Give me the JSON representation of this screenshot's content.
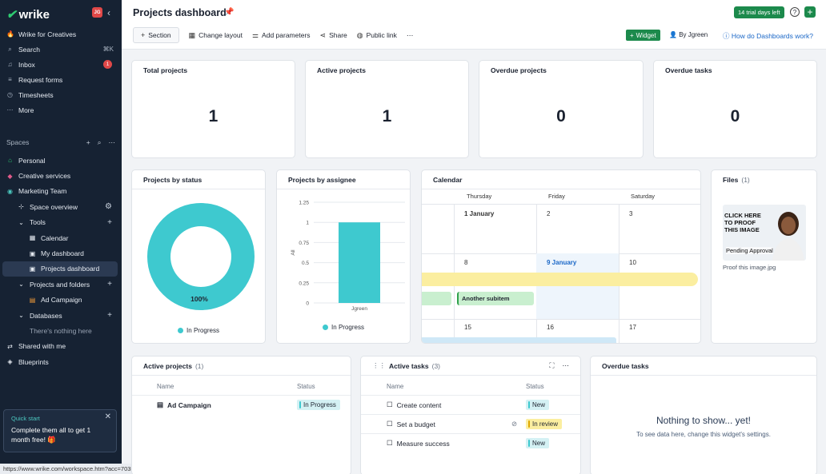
{
  "app": {
    "logo_text": "wrike",
    "avatar_initials": "JG"
  },
  "sidebar": {
    "top_items": [
      {
        "label": "Wrike for Creatives",
        "icon": "fire-icon"
      },
      {
        "label": "Search",
        "icon": "search-icon",
        "shortcut": "⌘K"
      },
      {
        "label": "Inbox",
        "icon": "bell-icon",
        "badge": "1"
      },
      {
        "label": "Request forms",
        "icon": "form-icon"
      },
      {
        "label": "Timesheets",
        "icon": "clock-icon"
      },
      {
        "label": "More",
        "icon": "more-icon"
      }
    ],
    "spaces_label": "Spaces",
    "tree": [
      {
        "label": "Personal",
        "icon": "home-icon"
      },
      {
        "label": "Creative services",
        "icon": "palette-icon"
      },
      {
        "label": "Marketing Team",
        "icon": "team-icon"
      },
      {
        "label": "Space overview",
        "icon": "overview-icon"
      },
      {
        "label": "Tools",
        "icon": "chevron-down-icon"
      },
      {
        "label": "Calendar",
        "icon": "calendar-icon"
      },
      {
        "label": "My dashboard",
        "icon": "dashboard-icon"
      },
      {
        "label": "Projects dashboard",
        "icon": "dashboard-icon"
      },
      {
        "label": "Projects and folders",
        "icon": "chevron-down-icon"
      },
      {
        "label": "Ad Campaign",
        "icon": "project-icon"
      },
      {
        "label": "Databases",
        "icon": "chevron-down-icon"
      },
      {
        "label": "There's nothing here",
        "icon": ""
      },
      {
        "label": "Shared with me",
        "icon": "share-icon"
      },
      {
        "label": "Blueprints",
        "icon": "blueprint-icon"
      }
    ],
    "quick_start": {
      "title": "Quick start",
      "text": "Complete them all to get 1 month free!",
      "emoji": "🎁"
    }
  },
  "status_url": "https://www.wrike.com/workspace.htm?acc=7035655#/dashboard-app/15950927",
  "header": {
    "title": "Projects dashboard",
    "trial": "14 trial days left",
    "toolbar": [
      "Section",
      "Change layout",
      "Add parameters",
      "Share",
      "Public link"
    ],
    "widget_btn": "Widget",
    "by_user": "By Jgreen",
    "help_link": "How do Dashboards work?"
  },
  "stats": [
    {
      "label": "Total projects",
      "value": "1"
    },
    {
      "label": "Active projects",
      "value": "1"
    },
    {
      "label": "Overdue projects",
      "value": "0"
    },
    {
      "label": "Overdue tasks",
      "value": "0"
    }
  ],
  "projects_by_status": {
    "title": "Projects by status",
    "slice_label": "100%",
    "legend": "In Progress",
    "color": "#3ec9cf"
  },
  "chart_data": {
    "type": "bar",
    "title": "Projects by assignee",
    "categories": [
      "Jgreen"
    ],
    "series": [
      {
        "name": "In Progress",
        "values": [
          1
        ]
      }
    ],
    "ylabel": "All",
    "ylim": [
      0,
      1.25
    ],
    "yticks": [
      "1.25",
      "1",
      "0.75",
      "0.5",
      "0.25",
      "0"
    ],
    "color": "#3ec9cf"
  },
  "calendar": {
    "title": "Calendar",
    "days": [
      "Thursday",
      "Friday",
      "Saturday"
    ],
    "weeks": [
      [
        "1 January",
        "2",
        "3"
      ],
      [
        "8",
        "9 January",
        "10"
      ],
      [
        "15",
        "16",
        "17"
      ]
    ],
    "subitem": "Another subitem"
  },
  "files": {
    "title": "Files",
    "count": "(1)",
    "thumb_text": "CLICK HERE TO PROOF THIS IMAGE",
    "pending": "Pending Approval",
    "filename": "Proof this image.jpg"
  },
  "active_projects": {
    "title": "Active projects",
    "count": "(1)",
    "headers": [
      "Name",
      "Status"
    ],
    "rows": [
      {
        "name": "Ad Campaign",
        "status": "In Progress"
      }
    ]
  },
  "active_tasks": {
    "title": "Active tasks",
    "count": "(3)",
    "headers": [
      "Name",
      "Status"
    ],
    "rows": [
      {
        "name": "Create content",
        "status": "New"
      },
      {
        "name": "Set a budget",
        "status": "In review"
      },
      {
        "name": "Measure success",
        "status": "New"
      }
    ]
  },
  "overdue_tasks": {
    "title": "Overdue tasks",
    "empty_title": "Nothing to show... yet!",
    "empty_text": "To see data here, change this widget's settings."
  }
}
